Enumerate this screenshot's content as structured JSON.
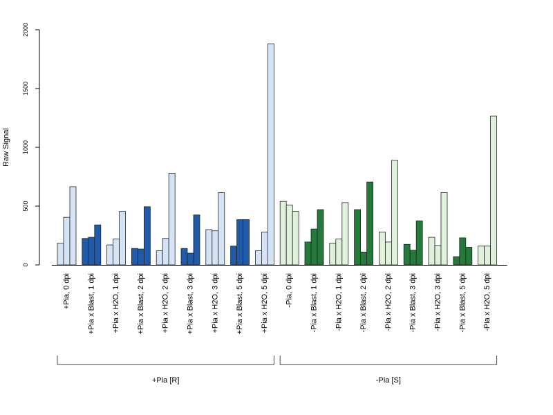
{
  "chart_data": {
    "type": "bar",
    "ylabel": "Raw Signal",
    "ylim": [
      0,
      2000
    ],
    "yticks": [
      "0",
      "500",
      "1000",
      "1500",
      "2000"
    ],
    "categories": [
      "+Pia, 0 dpi",
      "+Pia x Blast, 1 dpi",
      "+Pia x H2O, 1 dpi",
      "+Pia x Blast, 2 dpi",
      "+Pia x H2O, 2 dpi",
      "+Pia x Blast, 3 dpi",
      "+Pia x H2O, 3 dpi",
      "+Pia x Blast, 5 dpi",
      "+Pia x H2O, 5 dpi",
      "-Pia, 0 dpi",
      "-Pia x Blast, 1 dpi",
      "-Pia x H2O, 1 dpi",
      "-Pia x Blast, 2 dpi",
      "-Pia x H2O, 2 dpi",
      "-Pia x Blast, 3 dpi",
      "-Pia x H2O, 3 dpi",
      "-Pia x Blast, 5 dpi",
      "-Pia x H2O, 5 dpi"
    ],
    "values": [
      [
        185,
        405,
        665
      ],
      [
        225,
        235,
        340
      ],
      [
        170,
        220,
        455
      ],
      [
        140,
        135,
        495
      ],
      [
        120,
        225,
        780
      ],
      [
        140,
        100,
        425
      ],
      [
        300,
        290,
        615
      ],
      [
        160,
        385,
        385
      ],
      [
        120,
        280,
        1880
      ],
      [
        540,
        510,
        455
      ],
      [
        195,
        305,
        470
      ],
      [
        185,
        220,
        530
      ],
      [
        470,
        110,
        705
      ],
      [
        280,
        195,
        890
      ],
      [
        175,
        125,
        375
      ],
      [
        235,
        165,
        615
      ],
      [
        70,
        230,
        150
      ],
      [
        160,
        160,
        1265
      ]
    ],
    "bar_colors": [
      "#d4e3f5",
      "#1f5ba8",
      "#d4e3f5",
      "#1f5ba8",
      "#d4e3f5",
      "#1f5ba8",
      "#d4e3f5",
      "#1f5ba8",
      "#d4e3f5",
      "#dff1da",
      "#247a3a",
      "#dff1da",
      "#247a3a",
      "#dff1da",
      "#247a3a",
      "#dff1da",
      "#247a3a",
      "#dff1da"
    ],
    "groups": [
      {
        "label": "+Pia [R]",
        "first": 0,
        "last": 8
      },
      {
        "label": "-Pia [S]",
        "first": 9,
        "last": 17
      }
    ],
    "grid": false,
    "legend": "none"
  }
}
